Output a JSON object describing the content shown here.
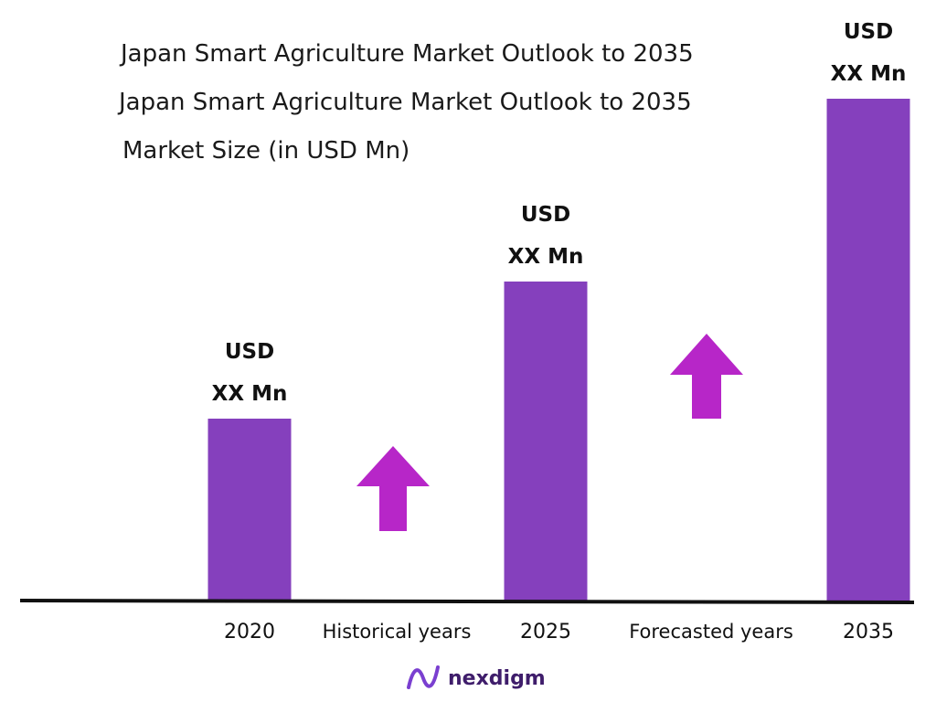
{
  "header": {
    "title_line_1": "Japan Smart Agriculture Market Outlook to 2035",
    "title_line_2": "Japan Smart Agriculture Market Outlook to 2035",
    "subtitle": "Market Size (in USD Mn)"
  },
  "chart_data": {
    "type": "bar",
    "title": "Japan Smart Agriculture Market Outlook to 2035",
    "subtitle": "Market Size (in USD Mn)",
    "categories": [
      "2020",
      "2025",
      "2035"
    ],
    "values": [
      40,
      70,
      110
    ],
    "value_labels": [
      {
        "line1": "USD",
        "line2": "XX Mn"
      },
      {
        "line1": "USD",
        "line2": "XX Mn"
      },
      {
        "line1": "USD",
        "line2": "XX Mn"
      }
    ],
    "ylim": [
      0,
      120
    ],
    "grid": false,
    "periods": [
      "Historical years",
      "Forecasted years"
    ],
    "bar_color": "#8540bd",
    "arrow_color": "#b726c8",
    "axis_color": "#111111"
  },
  "footer": {
    "brand": "nexdigm",
    "logo_icon": "nexdigm-wave-icon"
  }
}
